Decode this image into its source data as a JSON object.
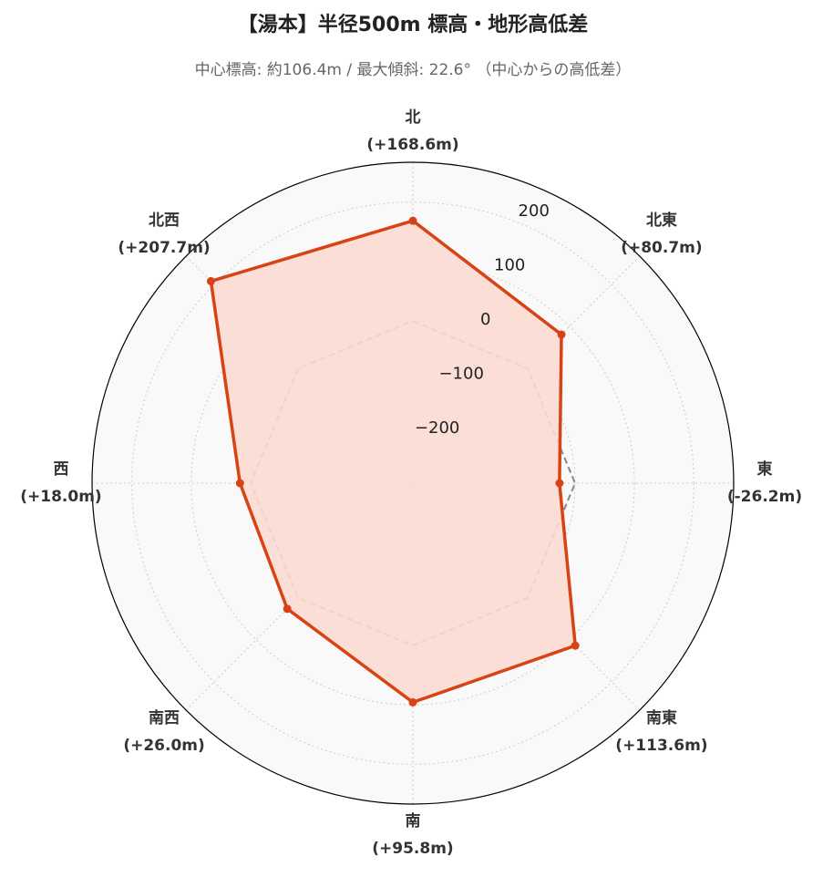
{
  "chart_data": {
    "type": "radar",
    "title": "【湯本】半径500m 標高・地形高低差",
    "subtitle": "中心標高: 約106.4m / 最大傾斜: 22.6° （中心からの高低差）",
    "categories": [
      "北",
      "北東",
      "東",
      "南東",
      "南",
      "南西",
      "西",
      "北西"
    ],
    "series": [
      {
        "color": "#d84315",
        "fill": "#fbdcd3",
        "values": [
          168.6,
          80.7,
          -26.2,
          113.6,
          95.8,
          26.0,
          18.0,
          207.7
        ],
        "value_labels": [
          "(+168.6m)",
          "(+80.7m)",
          "(-26.2m)",
          "(+113.6m)",
          "(+95.8m)",
          "(+26.0m)",
          "(+18.0m)",
          "(+207.7m)"
        ]
      }
    ],
    "reference": 0,
    "rlim": [
      -273,
      267
    ],
    "rticks": [
      {
        "value": -200,
        "label": "−200"
      },
      {
        "value": -100,
        "label": "−100"
      },
      0,
      100,
      200
    ],
    "grid": true
  }
}
